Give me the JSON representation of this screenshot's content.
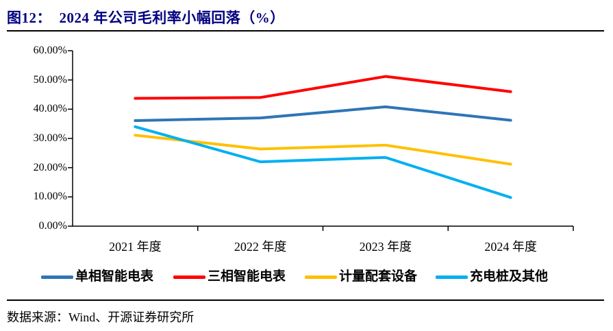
{
  "title": "图12：  2024 年公司毛利率小幅回落（%）",
  "source": "数据来源：Wind、开源证券研究所",
  "colors": {
    "title": "#000080",
    "axis": "#000000",
    "series_blue": "#2E75B6",
    "series_red": "#FF0000",
    "series_gold": "#FFC000",
    "series_cyan": "#00B0F0"
  },
  "chart_data": {
    "type": "line",
    "title": "2024 年公司毛利率小幅回落（%）",
    "categories": [
      "2021 年度",
      "2022 年度",
      "2023 年度",
      "2024 年度"
    ],
    "series": [
      {
        "name": "单相智能电表",
        "color": "#2E75B6",
        "values": [
          36.1,
          37.0,
          40.8,
          36.2
        ]
      },
      {
        "name": "三相智能电表",
        "color": "#FF0000",
        "values": [
          43.7,
          44.0,
          51.2,
          46.0
        ]
      },
      {
        "name": "计量配套设备",
        "color": "#FFC000",
        "values": [
          31.1,
          26.4,
          27.7,
          21.2
        ]
      },
      {
        "name": "充电桩及其他",
        "color": "#00B0F0",
        "values": [
          34.0,
          22.0,
          23.5,
          9.8
        ]
      }
    ],
    "xlabel": "",
    "ylabel": "",
    "ylim": [
      0,
      60
    ],
    "ytick_step": 10,
    "ytick_labels": [
      "60.00%",
      "50.00%",
      "40.00%",
      "30.00%",
      "20.00%",
      "10.00%",
      "0.00%"
    ],
    "grid": false,
    "legend_position": "bottom",
    "line_width": 4
  }
}
